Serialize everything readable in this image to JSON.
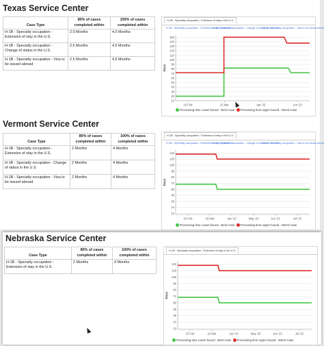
{
  "colors": {
    "best": "#44c744",
    "worst": "#dd2b2b",
    "link": "#3b6fd6"
  },
  "table_headers": {
    "case_type": "Case Type",
    "pct80": "80% of cases completed within",
    "pct100": "100% of cases completed within"
  },
  "legend": {
    "best": "Processing time Lower bound - Best Case",
    "worst": "Processing time Upper bound - Worst Case"
  },
  "y_axis_label": "Days",
  "centers": [
    {
      "title": "Texas Service Center",
      "rows": [
        {
          "case": "H-1B - Specialty occupation - Extension of stay in the U.S.",
          "pct80": "2.5 Months",
          "pct100": "4.5 Months"
        },
        {
          "case": "H-1B - Specialty occupation - Change of status in the U.S.",
          "pct80": "2.5 Months",
          "pct100": "4.5 Months"
        },
        {
          "case": "H-1B - Specialty occupation - Visa to be issued abroad",
          "pct80": "2.5 Months",
          "pct100": "4.5 Months"
        }
      ],
      "tabs": [
        "H-1B - Specialty occupation - Extension of stay in the U.S.",
        "H-1B - Specialty occupation - Change of status in the U.S.",
        "H-1B - Specialty occupation - Visa to be issued abroad"
      ],
      "chart_data": {
        "type": "line",
        "x_ticks": [
          "15 Feb",
          "15 Mar",
          "Apr '23",
          "Jun '23"
        ],
        "y_ticks": [
          10,
          20,
          30,
          40,
          50,
          60,
          70,
          80,
          90,
          100,
          110,
          120,
          130,
          140,
          150
        ],
        "ylim": [
          10,
          155
        ],
        "series": [
          {
            "name": "Processing time Lower bound - Best Case",
            "color": "#44c744",
            "points": [
              [
                0.0,
                20
              ],
              [
                0.36,
                20
              ],
              [
                0.36,
                82
              ],
              [
                0.84,
                82
              ],
              [
                0.86,
                72
              ],
              [
                1.0,
                72
              ]
            ]
          },
          {
            "name": "Processing time Upper bound - Worst Case",
            "color": "#dd2b2b",
            "points": [
              [
                0.0,
                72
              ],
              [
                0.36,
                72
              ],
              [
                0.36,
                150
              ],
              [
                0.81,
                150
              ],
              [
                0.83,
                137
              ],
              [
                1.0,
                137
              ]
            ]
          }
        ]
      }
    },
    {
      "title": "Vermont Service Center",
      "rows": [
        {
          "case": "H-1B - Specialty occupation - Extension of stay in the U.S.",
          "pct80": "2 Months",
          "pct100": "4 Months"
        },
        {
          "case": "H-1B - Specialty occupation - Change of status in the U.S.",
          "pct80": "2 Months",
          "pct100": "4 Months"
        },
        {
          "case": "H-1B - Specialty occupation - Visa to be issued abroad",
          "pct80": "2 Months",
          "pct100": "4 Months"
        }
      ],
      "tabs": [
        "H-1B - Specialty occupation - Extension of stay in the U.S.",
        "H-1B - Specialty occupation - Change of status in the U.S.",
        "H-1B - Specialty occupation - Visa to be issued abroad"
      ],
      "chart_data": {
        "type": "line",
        "x_ticks": [
          "15 Feb",
          "15 Mar",
          "Apr '23",
          "May '23",
          "Jun '23",
          "Jul '23"
        ],
        "y_ticks": [
          12,
          24,
          36,
          48,
          60,
          72,
          84,
          96,
          108,
          120,
          132
        ],
        "ylim": [
          10,
          138
        ],
        "series": [
          {
            "name": "Processing time Lower bound - Best Case",
            "color": "#44c744",
            "points": [
              [
                0.0,
                70
              ],
              [
                0.3,
                70
              ],
              [
                0.31,
                60
              ],
              [
                1.0,
                60
              ]
            ]
          },
          {
            "name": "Processing time Upper bound - Worst Case",
            "color": "#dd2b2b",
            "points": [
              [
                0.0,
                130
              ],
              [
                0.3,
                130
              ],
              [
                0.31,
                120
              ],
              [
                1.0,
                120
              ]
            ]
          }
        ]
      }
    },
    {
      "title": "Nebraska Service Center",
      "rows": [
        {
          "case": "H-1B - Specialty occupation - Extension of stay in the U.S.",
          "pct80": "2 Months",
          "pct100": "4 Months"
        }
      ],
      "tabs": [
        "H-1B - Specialty occupation - Extension of stay in the U.S."
      ],
      "chart_data": {
        "type": "line",
        "x_ticks": [
          "15 Feb",
          "15 Mar",
          "Apr '23",
          "May '23",
          "Jun '23",
          "Jul '23"
        ],
        "y_ticks": [
          12,
          24,
          36,
          48,
          60,
          72,
          84,
          96,
          108,
          120,
          132
        ],
        "ylim": [
          10,
          138
        ],
        "series": [
          {
            "name": "Processing time Lower bound - Best Case",
            "color": "#44c744",
            "points": [
              [
                0.0,
                70
              ],
              [
                0.3,
                70
              ],
              [
                0.31,
                60
              ],
              [
                1.0,
                60
              ]
            ]
          },
          {
            "name": "Processing time Upper bound - Worst Case",
            "color": "#dd2b2b",
            "points": [
              [
                0.0,
                130
              ],
              [
                0.3,
                130
              ],
              [
                0.31,
                120
              ],
              [
                1.0,
                120
              ]
            ]
          }
        ]
      }
    }
  ]
}
